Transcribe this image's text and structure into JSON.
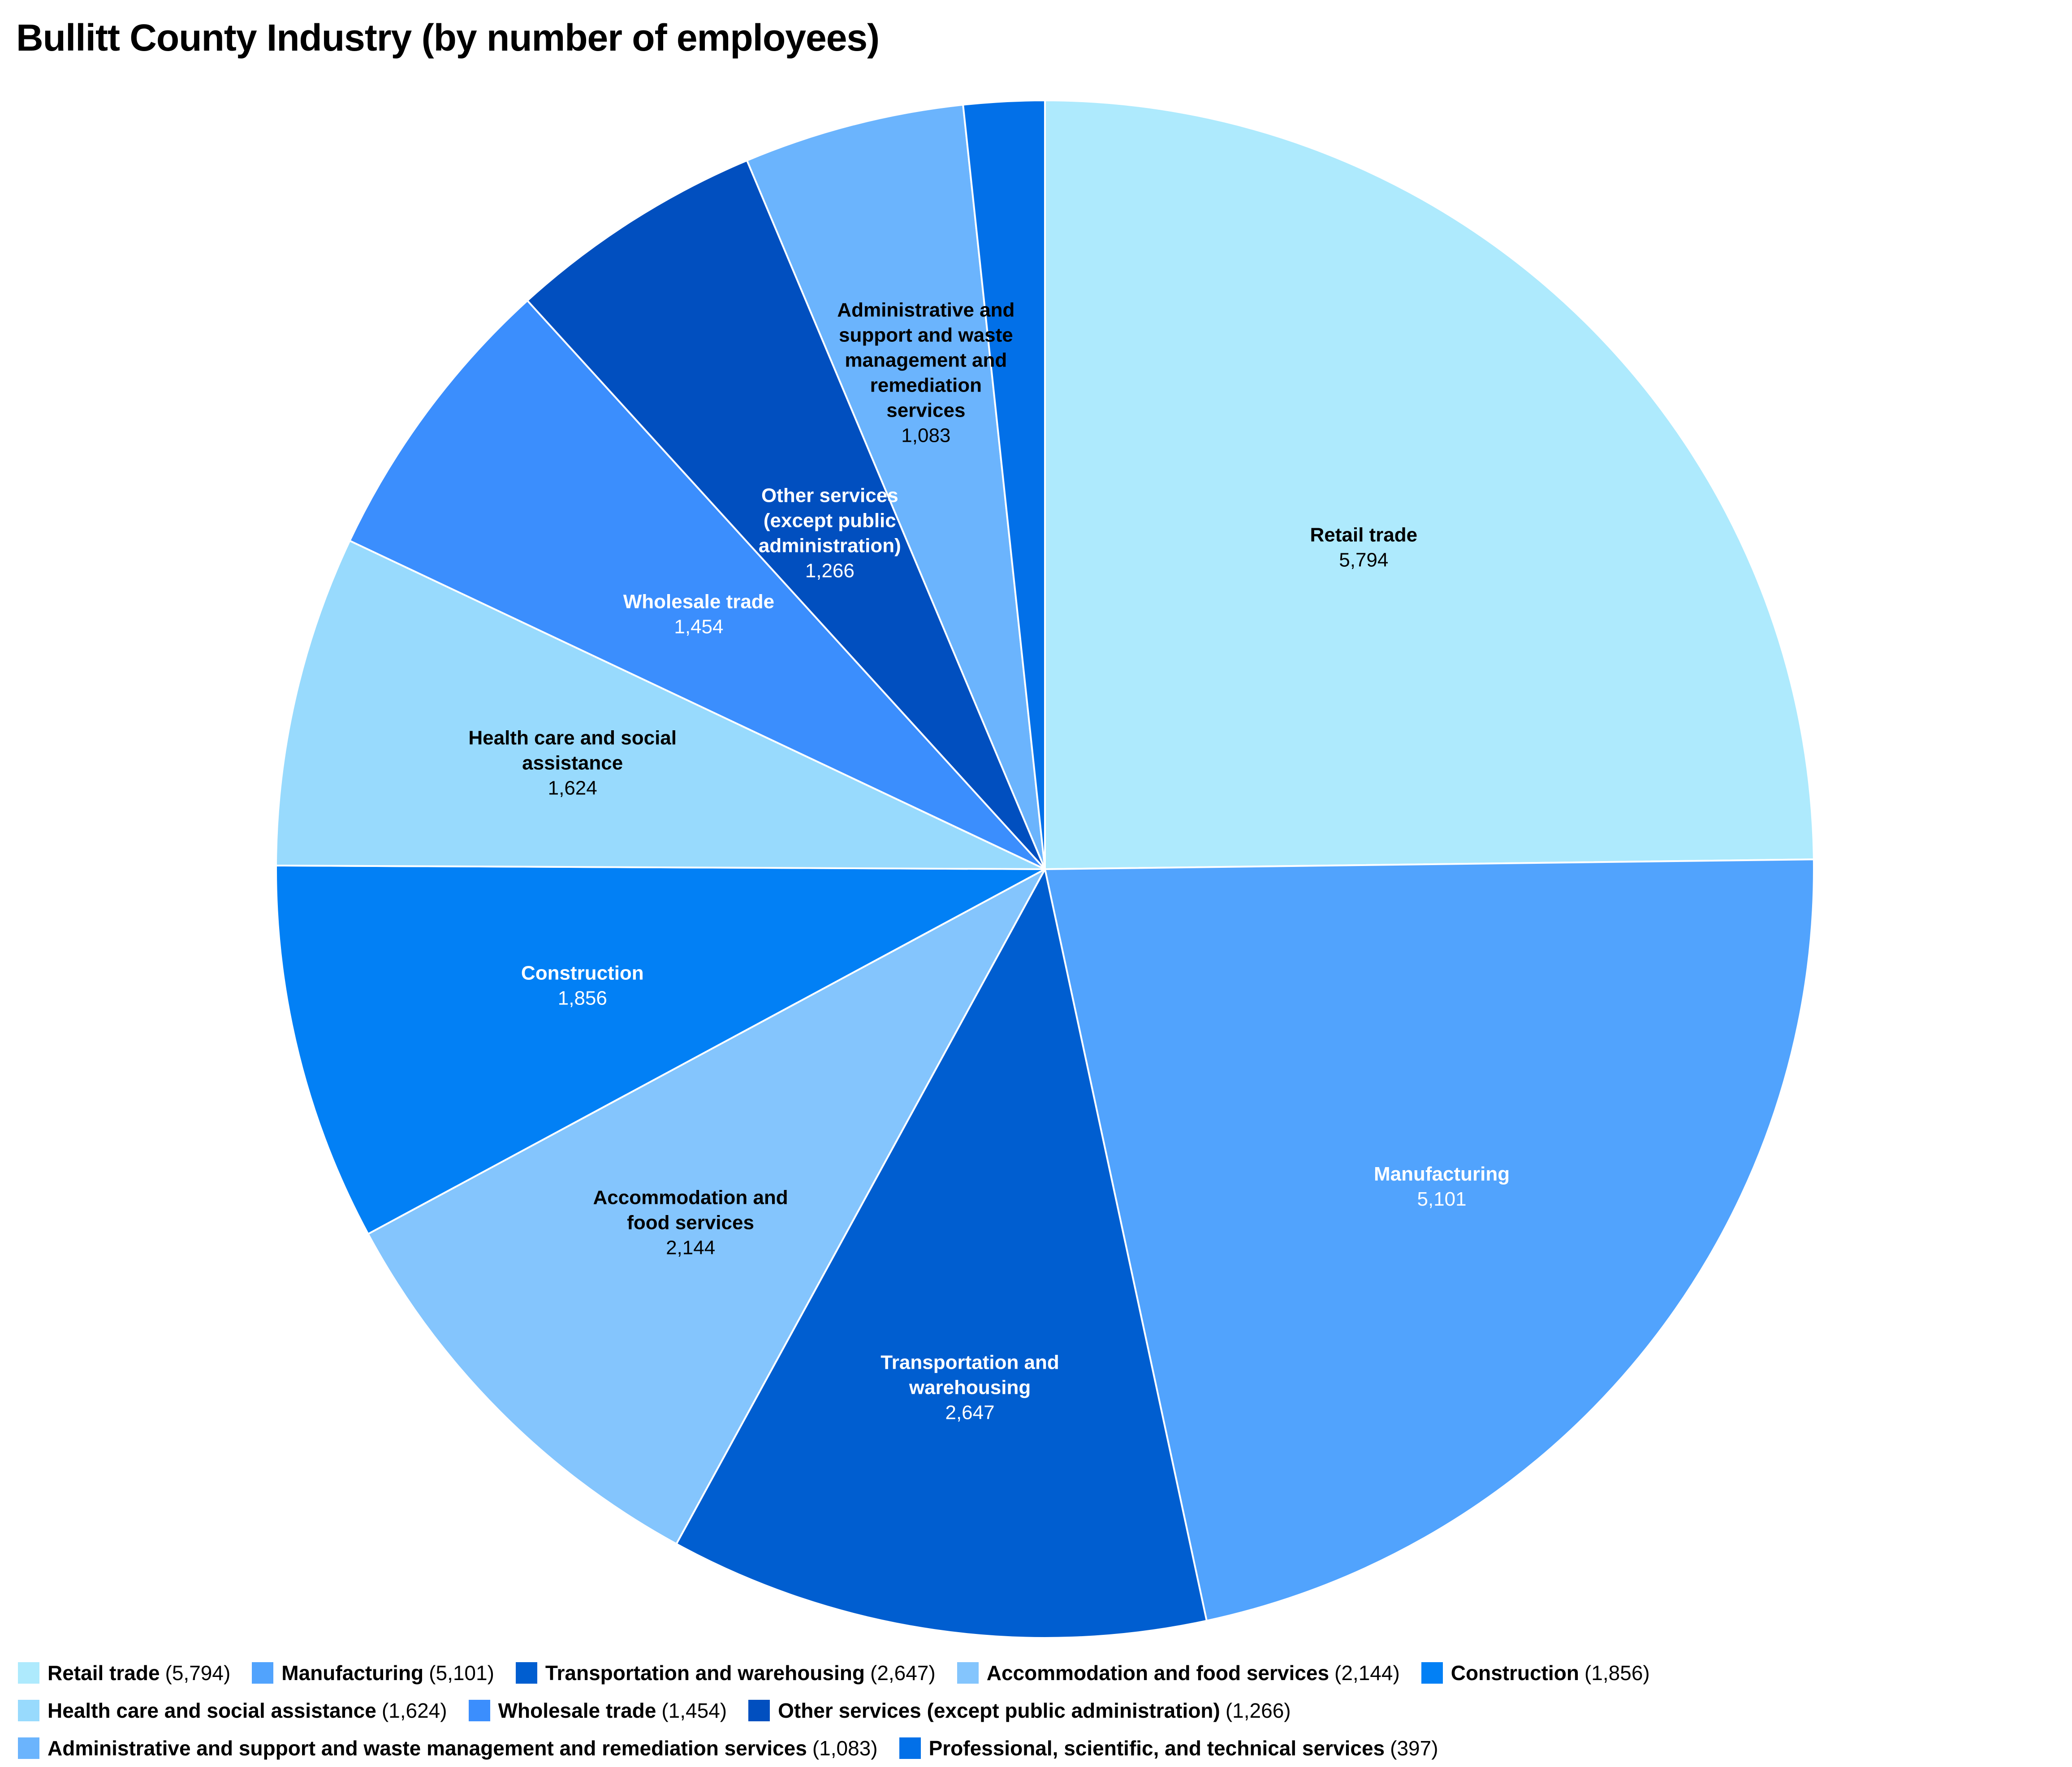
{
  "chart_data": {
    "type": "pie",
    "title": "Bullitt County Industry (by number of employees)",
    "slices": [
      {
        "label": "Retail trade",
        "value": 5794,
        "display": "5,794",
        "color": "#aeeafd",
        "label_color": "#000000",
        "slice_label": [
          "Retail trade"
        ]
      },
      {
        "label": "Manufacturing",
        "value": 5101,
        "display": "5,101",
        "color": "#51a3fd",
        "label_color": "#ffffff",
        "slice_label": [
          "Manufacturing"
        ]
      },
      {
        "label": "Transportation and warehousing",
        "value": 2647,
        "display": "2,647",
        "color": "#005ed0",
        "label_color": "#ffffff",
        "slice_label": [
          "Transportation and",
          "warehousing"
        ]
      },
      {
        "label": "Accommodation and food services",
        "value": 2144,
        "display": "2,144",
        "color": "#84c5fd",
        "label_color": "#000000",
        "slice_label": [
          "Accommodation and",
          "food services"
        ]
      },
      {
        "label": "Construction",
        "value": 1856,
        "display": "1,856",
        "color": "#0280f5",
        "label_color": "#ffffff",
        "slice_label": [
          "Construction"
        ]
      },
      {
        "label": "Health care and social assistance",
        "value": 1624,
        "display": "1,624",
        "color": "#98dafd",
        "label_color": "#000000",
        "slice_label": [
          "Health care and social",
          "assistance"
        ]
      },
      {
        "label": "Wholesale trade",
        "value": 1454,
        "display": "1,454",
        "color": "#3b8efd",
        "label_color": "#ffffff",
        "slice_label": [
          "Wholesale trade"
        ]
      },
      {
        "label": "Other services (except public administration)",
        "value": 1266,
        "display": "1,266",
        "color": "#014fbf",
        "label_color": "#ffffff",
        "slice_label": [
          "Other services",
          "(except public",
          "administration)"
        ]
      },
      {
        "label": "Administrative and support and waste management and remediation services",
        "value": 1083,
        "display": "1,083",
        "color": "#6bb4fd",
        "label_color": "#000000",
        "slice_label": [
          "Administrative and",
          "support and waste",
          "management and",
          "remediation",
          "services"
        ]
      },
      {
        "label": "Professional, scientific, and technical services",
        "value": 397,
        "display": "397",
        "color": "#0270e8",
        "label_color": "#ffffff",
        "slice_label": []
      }
    ],
    "legend_position": "bottom"
  }
}
